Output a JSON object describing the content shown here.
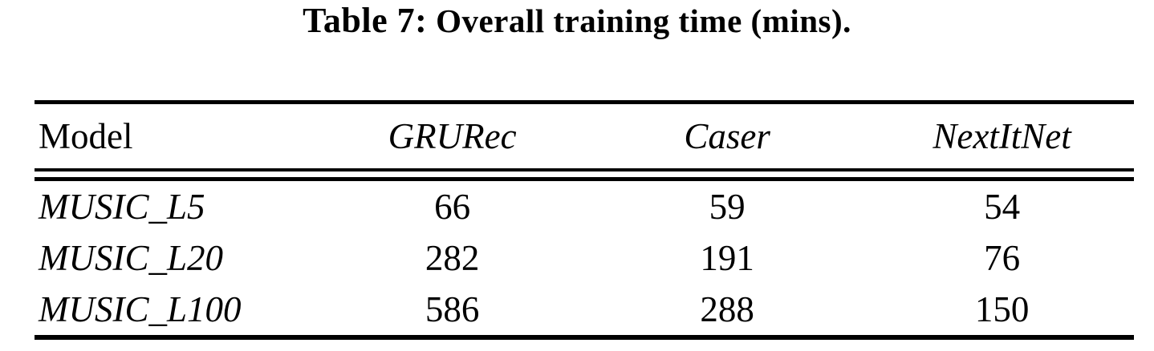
{
  "page": {
    "background_color": "#ffffff",
    "text_color": "#000000"
  },
  "caption": {
    "label": "Table 7:",
    "text": " Overall training time (mins)."
  },
  "table": {
    "columns": [
      "Model",
      "GRURec",
      "Caser",
      "NextItNet"
    ],
    "rows": [
      {
        "model": "MUSIC_L5",
        "grurec": "66",
        "caser": "59",
        "nextitnet": "54"
      },
      {
        "model": "MUSIC_L20",
        "grurec": "282",
        "caser": "191",
        "nextitnet": "76"
      },
      {
        "model": "MUSIC_L100",
        "grurec": "586",
        "caser": "288",
        "nextitnet": "150"
      }
    ]
  }
}
